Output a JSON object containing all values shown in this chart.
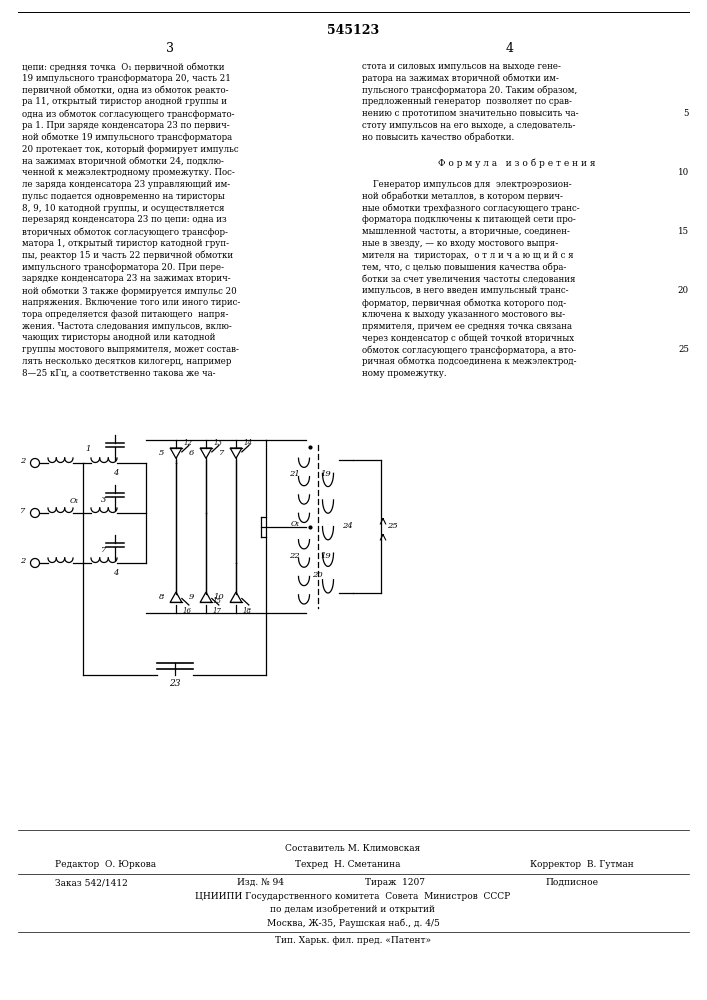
{
  "patent_number": "545123",
  "page_left": "3",
  "page_right": "4",
  "bg_color": "#ffffff",
  "text_color": "#000000",
  "text_col1": [
    "цепи: средняя точка  O₁ первичной обмотки",
    "19 импульсного трансформатора 20, часть 21",
    "первичной обмотки, одна из обмоток реакто-",
    "ра 11, открытый тиристор анодной группы и",
    "одна из обмоток согласующего трансформато-",
    "ра 1. При заряде конденсатора 23 по первич-",
    "ной обмотке 19 импульсного трансформатора",
    "20 протекает ток, который формирует импульс",
    "на зажимах вторичной обмотки 24, подклю-",
    "ченной к межэлектродному промежутку. Пос-",
    "ле заряда конденсатора 23 управляющий им-",
    "пульс подается одновременно на тиристоры",
    "8, 9, 10 катодной группы, и осуществляется",
    "перезаряд конденсатора 23 по цепи: одна из",
    "вторичных обмоток согласующего трансфор-",
    "матора 1, открытый тиристор катодной груп-",
    "пы, реактор 15 и часть 22 первичной обмотки",
    "импульсного трансформатора 20. При пере-",
    "зарядке конденсатора 23 на зажимах вторич-",
    "ной обмотки 3 также формируется импульс 20",
    "напряжения. Включение того или иного тирис-",
    "тора определяется фазой питающего  напря-",
    "жения. Частота следования импульсов, вклю-",
    "чающих тиристоры анодной или катодной",
    "группы мостового выпрямителя, может состав-",
    "лять несколько десятков килогерц, например",
    "8—25 кГц, а соответственно такова же ча-"
  ],
  "text_col2_lines": [
    "стота и силовых импульсов на выходе гене-",
    "ратора на зажимах вторичной обмотки им-",
    "пульсного трансформатора 20. Таким образом,",
    "предложенный генератор  позволяет по срав-",
    "нению с прототипом значительно повысить ча-",
    "стоту импульсов на его выходе, а следователь-",
    "но повысить качество обработки."
  ],
  "text_col2_formula_title": "Ф о р м у л а   и з о б р е т е н и я",
  "text_col2_formula": [
    "    Генератор импульсов для  электроэрозион-",
    "ной обработки металлов, в котором первич-",
    "ные обмотки трехфазного согласующего транс-",
    "форматора подключены к питающей сети про-",
    "мышленной частоты, а вторичные, соединен-",
    "ные в звезду, — ко входу мостового выпря-",
    "мителя на  тиристорах,  о т л и ч а ю щ и й с я",
    "тем, что, с целью повышения качества обра-",
    "ботки за счет увеличения частоты следования",
    "импульсов, в него введен импульсный транс-",
    "форматор, первичная обмотка которого под-",
    "ключена к выходу указанного мостового вы-",
    "прямителя, причем ее средняя точка связана",
    "через конденсатор с общей точкой вторичных",
    "обмоток согласующего трансформатора, а вто-",
    "ричная обмотка подсоединена к межэлектрод-",
    "ному промежутку."
  ],
  "col2_line_numbers": [
    5,
    10,
    15,
    20,
    25
  ],
  "footer_compiler": "Составитель М. Климовская",
  "footer_editor": "Редактор  О. Юркова",
  "footer_tech": "Техред  Н. Сметанина",
  "footer_corrector": "Корректор  В. Гутман",
  "footer_order": "Заказ 542/1412",
  "footer_pub": "Изд. № 94",
  "footer_circulation": "Тираж  1207",
  "footer_subscription": "Подписное",
  "footer_org1": "ЦНИИПИ Государственного комитета  Совета  Министров  СССР",
  "footer_org2": "по делам изобретений и открытий",
  "footer_address": "Москва, Ж-35, Раушская наб., д. 4/5",
  "footer_print": "Тип. Харьк. фил. пред. «Патент»"
}
